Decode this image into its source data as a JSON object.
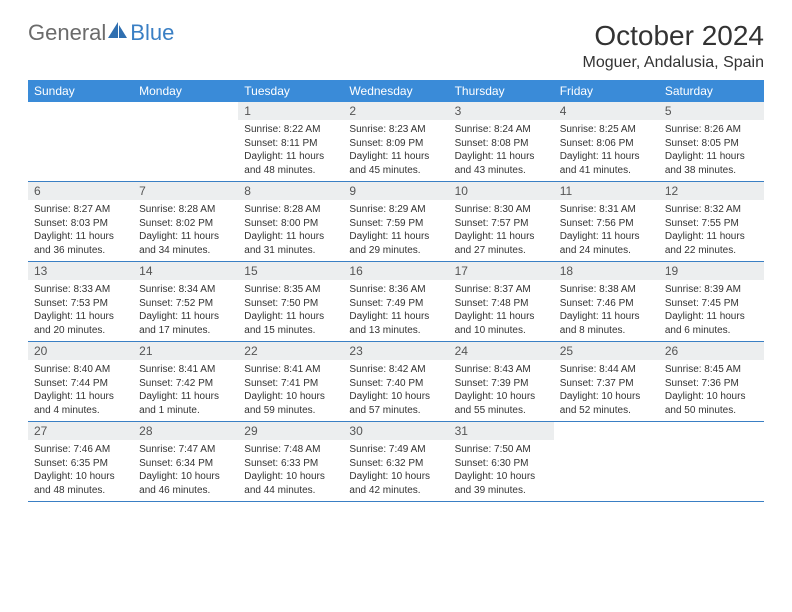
{
  "brand": {
    "part1": "General",
    "part2": "Blue"
  },
  "header": {
    "title": "October 2024",
    "location": "Moguer, Andalusia, Spain"
  },
  "colors": {
    "header_bar": "#3a8bd8",
    "divider": "#3a7fc4",
    "daynum_bg": "#eceeef",
    "text": "#333333"
  },
  "day_labels": [
    "Sunday",
    "Monday",
    "Tuesday",
    "Wednesday",
    "Thursday",
    "Friday",
    "Saturday"
  ],
  "weeks": [
    [
      {
        "n": "",
        "sr": "",
        "ss": "",
        "dl": ""
      },
      {
        "n": "",
        "sr": "",
        "ss": "",
        "dl": ""
      },
      {
        "n": "1",
        "sr": "Sunrise: 8:22 AM",
        "ss": "Sunset: 8:11 PM",
        "dl": "Daylight: 11 hours and 48 minutes."
      },
      {
        "n": "2",
        "sr": "Sunrise: 8:23 AM",
        "ss": "Sunset: 8:09 PM",
        "dl": "Daylight: 11 hours and 45 minutes."
      },
      {
        "n": "3",
        "sr": "Sunrise: 8:24 AM",
        "ss": "Sunset: 8:08 PM",
        "dl": "Daylight: 11 hours and 43 minutes."
      },
      {
        "n": "4",
        "sr": "Sunrise: 8:25 AM",
        "ss": "Sunset: 8:06 PM",
        "dl": "Daylight: 11 hours and 41 minutes."
      },
      {
        "n": "5",
        "sr": "Sunrise: 8:26 AM",
        "ss": "Sunset: 8:05 PM",
        "dl": "Daylight: 11 hours and 38 minutes."
      }
    ],
    [
      {
        "n": "6",
        "sr": "Sunrise: 8:27 AM",
        "ss": "Sunset: 8:03 PM",
        "dl": "Daylight: 11 hours and 36 minutes."
      },
      {
        "n": "7",
        "sr": "Sunrise: 8:28 AM",
        "ss": "Sunset: 8:02 PM",
        "dl": "Daylight: 11 hours and 34 minutes."
      },
      {
        "n": "8",
        "sr": "Sunrise: 8:28 AM",
        "ss": "Sunset: 8:00 PM",
        "dl": "Daylight: 11 hours and 31 minutes."
      },
      {
        "n": "9",
        "sr": "Sunrise: 8:29 AM",
        "ss": "Sunset: 7:59 PM",
        "dl": "Daylight: 11 hours and 29 minutes."
      },
      {
        "n": "10",
        "sr": "Sunrise: 8:30 AM",
        "ss": "Sunset: 7:57 PM",
        "dl": "Daylight: 11 hours and 27 minutes."
      },
      {
        "n": "11",
        "sr": "Sunrise: 8:31 AM",
        "ss": "Sunset: 7:56 PM",
        "dl": "Daylight: 11 hours and 24 minutes."
      },
      {
        "n": "12",
        "sr": "Sunrise: 8:32 AM",
        "ss": "Sunset: 7:55 PM",
        "dl": "Daylight: 11 hours and 22 minutes."
      }
    ],
    [
      {
        "n": "13",
        "sr": "Sunrise: 8:33 AM",
        "ss": "Sunset: 7:53 PM",
        "dl": "Daylight: 11 hours and 20 minutes."
      },
      {
        "n": "14",
        "sr": "Sunrise: 8:34 AM",
        "ss": "Sunset: 7:52 PM",
        "dl": "Daylight: 11 hours and 17 minutes."
      },
      {
        "n": "15",
        "sr": "Sunrise: 8:35 AM",
        "ss": "Sunset: 7:50 PM",
        "dl": "Daylight: 11 hours and 15 minutes."
      },
      {
        "n": "16",
        "sr": "Sunrise: 8:36 AM",
        "ss": "Sunset: 7:49 PM",
        "dl": "Daylight: 11 hours and 13 minutes."
      },
      {
        "n": "17",
        "sr": "Sunrise: 8:37 AM",
        "ss": "Sunset: 7:48 PM",
        "dl": "Daylight: 11 hours and 10 minutes."
      },
      {
        "n": "18",
        "sr": "Sunrise: 8:38 AM",
        "ss": "Sunset: 7:46 PM",
        "dl": "Daylight: 11 hours and 8 minutes."
      },
      {
        "n": "19",
        "sr": "Sunrise: 8:39 AM",
        "ss": "Sunset: 7:45 PM",
        "dl": "Daylight: 11 hours and 6 minutes."
      }
    ],
    [
      {
        "n": "20",
        "sr": "Sunrise: 8:40 AM",
        "ss": "Sunset: 7:44 PM",
        "dl": "Daylight: 11 hours and 4 minutes."
      },
      {
        "n": "21",
        "sr": "Sunrise: 8:41 AM",
        "ss": "Sunset: 7:42 PM",
        "dl": "Daylight: 11 hours and 1 minute."
      },
      {
        "n": "22",
        "sr": "Sunrise: 8:41 AM",
        "ss": "Sunset: 7:41 PM",
        "dl": "Daylight: 10 hours and 59 minutes."
      },
      {
        "n": "23",
        "sr": "Sunrise: 8:42 AM",
        "ss": "Sunset: 7:40 PM",
        "dl": "Daylight: 10 hours and 57 minutes."
      },
      {
        "n": "24",
        "sr": "Sunrise: 8:43 AM",
        "ss": "Sunset: 7:39 PM",
        "dl": "Daylight: 10 hours and 55 minutes."
      },
      {
        "n": "25",
        "sr": "Sunrise: 8:44 AM",
        "ss": "Sunset: 7:37 PM",
        "dl": "Daylight: 10 hours and 52 minutes."
      },
      {
        "n": "26",
        "sr": "Sunrise: 8:45 AM",
        "ss": "Sunset: 7:36 PM",
        "dl": "Daylight: 10 hours and 50 minutes."
      }
    ],
    [
      {
        "n": "27",
        "sr": "Sunrise: 7:46 AM",
        "ss": "Sunset: 6:35 PM",
        "dl": "Daylight: 10 hours and 48 minutes."
      },
      {
        "n": "28",
        "sr": "Sunrise: 7:47 AM",
        "ss": "Sunset: 6:34 PM",
        "dl": "Daylight: 10 hours and 46 minutes."
      },
      {
        "n": "29",
        "sr": "Sunrise: 7:48 AM",
        "ss": "Sunset: 6:33 PM",
        "dl": "Daylight: 10 hours and 44 minutes."
      },
      {
        "n": "30",
        "sr": "Sunrise: 7:49 AM",
        "ss": "Sunset: 6:32 PM",
        "dl": "Daylight: 10 hours and 42 minutes."
      },
      {
        "n": "31",
        "sr": "Sunrise: 7:50 AM",
        "ss": "Sunset: 6:30 PM",
        "dl": "Daylight: 10 hours and 39 minutes."
      },
      {
        "n": "",
        "sr": "",
        "ss": "",
        "dl": ""
      },
      {
        "n": "",
        "sr": "",
        "ss": "",
        "dl": ""
      }
    ]
  ]
}
